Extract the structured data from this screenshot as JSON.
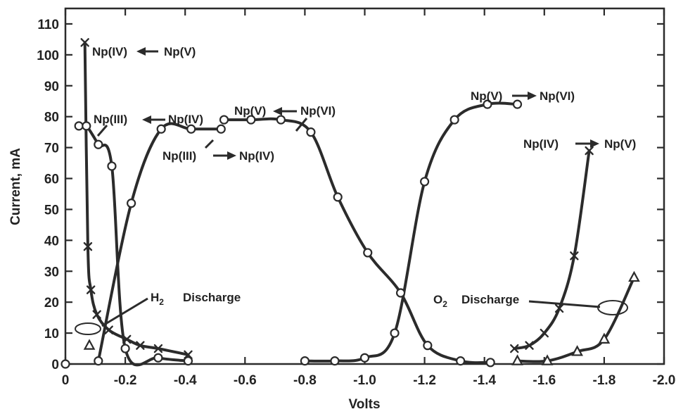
{
  "chart_data": {
    "type": "line",
    "title": "",
    "xlabel": "Volts",
    "ylabel": "Current, mA",
    "xlim": [
      0,
      -2.0
    ],
    "ylim": [
      0,
      115
    ],
    "x_ticks": [
      "0",
      "-0.2",
      "-0.4",
      "-0.6",
      "-0.8",
      "-1.0",
      "-1.2",
      "-1.4",
      "-1.6",
      "-1.8",
      "-2.0"
    ],
    "y_ticks": [
      "0",
      "10",
      "20",
      "30",
      "40",
      "50",
      "60",
      "70",
      "80",
      "90",
      "100",
      "110"
    ],
    "grid": false,
    "legend": "none",
    "series": [
      {
        "marker": "x",
        "points": [
          [
            -0.065,
            104
          ],
          [
            -0.075,
            38
          ],
          [
            -0.085,
            24
          ],
          [
            -0.105,
            16
          ],
          [
            -0.145,
            11
          ],
          [
            -0.205,
            8
          ],
          [
            -0.25,
            6
          ],
          [
            -0.31,
            5
          ],
          [
            -0.41,
            3
          ]
        ]
      },
      {
        "marker": "circle",
        "points": [
          [
            -0.045,
            77
          ],
          [
            -0.07,
            77
          ],
          [
            -0.11,
            71
          ],
          [
            -0.155,
            64
          ],
          [
            -0.2,
            5
          ],
          [
            -0.31,
            2
          ],
          [
            -0.41,
            1
          ]
        ]
      },
      {
        "marker": "circle",
        "points": [
          [
            -0.11,
            1
          ],
          [
            -0.22,
            52
          ],
          [
            -0.32,
            76
          ],
          [
            -0.42,
            76
          ],
          [
            -0.52,
            76
          ]
        ]
      },
      {
        "marker": "circle",
        "points": [
          [
            -0.53,
            79
          ],
          [
            -0.62,
            79
          ],
          [
            -0.72,
            79
          ],
          [
            -0.82,
            75
          ],
          [
            -0.91,
            54
          ],
          [
            -1.01,
            36
          ],
          [
            -1.12,
            23
          ],
          [
            -1.21,
            6
          ],
          [
            -1.32,
            1
          ],
          [
            -1.42,
            0.5
          ]
        ]
      },
      {
        "marker": "circle",
        "points": [
          [
            0,
            0
          ],
          [
            -0.8,
            1
          ],
          [
            -0.9,
            1
          ],
          [
            -1.0,
            2
          ],
          [
            -1.1,
            10
          ],
          [
            -1.2,
            59
          ],
          [
            -1.3,
            79
          ],
          [
            -1.41,
            84
          ],
          [
            -1.51,
            84
          ]
        ]
      },
      {
        "marker": "x",
        "points": [
          [
            -1.5,
            5
          ],
          [
            -1.55,
            6
          ],
          [
            -1.6,
            10
          ],
          [
            -1.65,
            18
          ],
          [
            -1.7,
            35
          ],
          [
            -1.75,
            69
          ]
        ]
      },
      {
        "marker": "triangle",
        "points": [
          [
            -0.08,
            6
          ],
          [
            -1.51,
            1
          ],
          [
            -1.61,
            1
          ],
          [
            -1.71,
            4
          ],
          [
            -1.8,
            8
          ],
          [
            -1.9,
            28
          ]
        ]
      }
    ],
    "annotations": {
      "np4_np5_left_a": "Np(IV)",
      "np4_np5_left_b": "Np(V)",
      "np3_np4_a": "Np(III)",
      "np3_np4_b": "Np(IV)",
      "np5_np6_mid_a": "Np(V)",
      "np5_np6_mid_b": "Np(VI)",
      "np3_np4_lower_a": "Np(III)",
      "np3_np4_lower_b": "Np(IV)",
      "np5_np6_right_a": "Np(V)",
      "np5_np6_right_b": "Np(VI)",
      "np4_np5_right_a": "Np(IV)",
      "np4_np5_right_b": "Np(V)",
      "h2_discharge": "Discharge",
      "o2_discharge": "Discharge"
    }
  }
}
